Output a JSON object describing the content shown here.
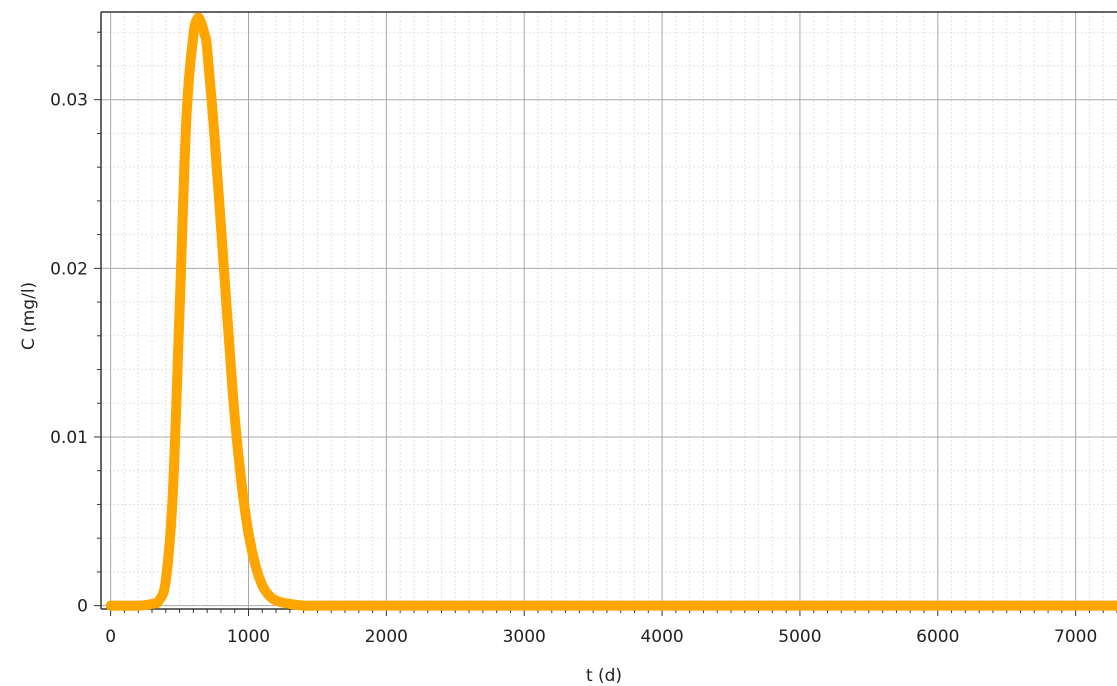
{
  "chart_data": {
    "type": "line",
    "title": "",
    "xlabel": "t (d)",
    "ylabel": "C (mg/l)",
    "xlim": [
      -70,
      7300
    ],
    "ylim": [
      -0.0002,
      0.0352
    ],
    "xticks": [
      0,
      1000,
      2000,
      3000,
      4000,
      5000,
      6000,
      7000
    ],
    "xtick_labels": [
      "0",
      "1000",
      "2000",
      "3000",
      "4000",
      "5000",
      "6000",
      "7000"
    ],
    "yticks": [
      0,
      0.01,
      0.02,
      0.03
    ],
    "ytick_labels": [
      "0",
      "0.01",
      "0.02",
      "0.03"
    ],
    "grid": true,
    "legend": "none",
    "line_color": "#ffa500",
    "series": [
      {
        "x": [
          0,
          200,
          300,
          350,
          400,
          450,
          500,
          550,
          600,
          630,
          650,
          680,
          700,
          750,
          800,
          850,
          900,
          950,
          1000,
          1050,
          1100,
          1150,
          1200,
          1300,
          1400,
          1500,
          2000,
          3000,
          4000,
          5000,
          6000,
          7000,
          7300
        ],
        "y": [
          0,
          0,
          0.0001,
          0.0003,
          0.0015,
          0.0065,
          0.0175,
          0.029,
          0.0338,
          0.0348,
          0.0347,
          0.0339,
          0.033,
          0.0282,
          0.0225,
          0.0167,
          0.0112,
          0.0072,
          0.0043,
          0.0024,
          0.0012,
          0.0006,
          0.0003,
          0.0001,
          0,
          0,
          0,
          0,
          0,
          0,
          0,
          0,
          0
        ]
      }
    ]
  }
}
